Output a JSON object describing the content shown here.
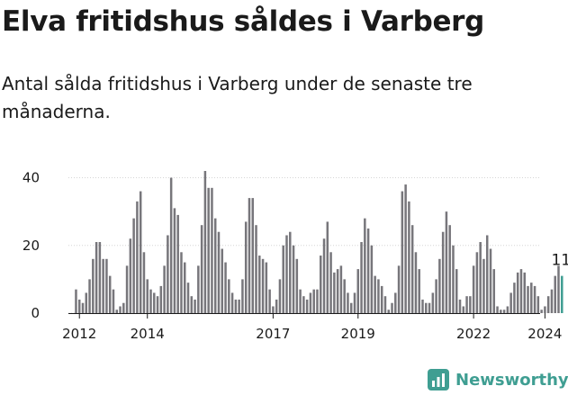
{
  "title": "Elva fritidshus såldes i Varberg",
  "subtitle": "Antal sålda fritidshus i Varberg under de senaste tre månaderna.",
  "brand": {
    "name": "Newsworthy",
    "icon": "newsworthy-chart-logo-icon",
    "color": "#3f9e92"
  },
  "chart_data": {
    "type": "bar",
    "title": "Elva fritidshus såldes i Varberg",
    "xlabel": "",
    "ylabel": "",
    "ylim": [
      0,
      42
    ],
    "yticks": [
      0,
      20,
      40
    ],
    "xticks": [
      "2012",
      "2014",
      "2017",
      "2019",
      "2022",
      "2024"
    ],
    "grid": true,
    "legend": "none",
    "bar_color": "#77767b",
    "highlight_color": "#3f9e92",
    "highlight_last": true,
    "annotation": "11",
    "values": [
      7,
      4,
      3,
      6,
      10,
      16,
      21,
      21,
      16,
      16,
      11,
      7,
      1,
      2,
      3,
      14,
      22,
      28,
      33,
      36,
      18,
      10,
      7,
      6,
      5,
      8,
      14,
      23,
      40,
      31,
      29,
      18,
      15,
      9,
      5,
      4,
      14,
      26,
      42,
      37,
      37,
      28,
      24,
      19,
      15,
      10,
      6,
      4,
      4,
      10,
      27,
      34,
      34,
      26,
      17,
      16,
      15,
      7,
      2,
      4,
      10,
      20,
      23,
      24,
      20,
      16,
      7,
      5,
      4,
      6,
      7,
      7,
      17,
      22,
      27,
      18,
      12,
      13,
      14,
      10,
      6,
      3,
      6,
      13,
      21,
      28,
      25,
      20,
      11,
      10,
      8,
      5,
      1,
      3,
      6,
      14,
      36,
      38,
      33,
      26,
      18,
      13,
      4,
      3,
      3,
      6,
      10,
      16,
      24,
      30,
      26,
      20,
      13,
      4,
      2,
      5,
      5,
      14,
      18,
      21,
      16,
      23,
      19,
      13,
      2,
      1,
      1,
      2,
      6,
      9,
      12,
      13,
      12,
      8,
      9,
      8,
      5,
      1,
      2,
      5,
      7,
      11,
      14,
      11
    ]
  }
}
